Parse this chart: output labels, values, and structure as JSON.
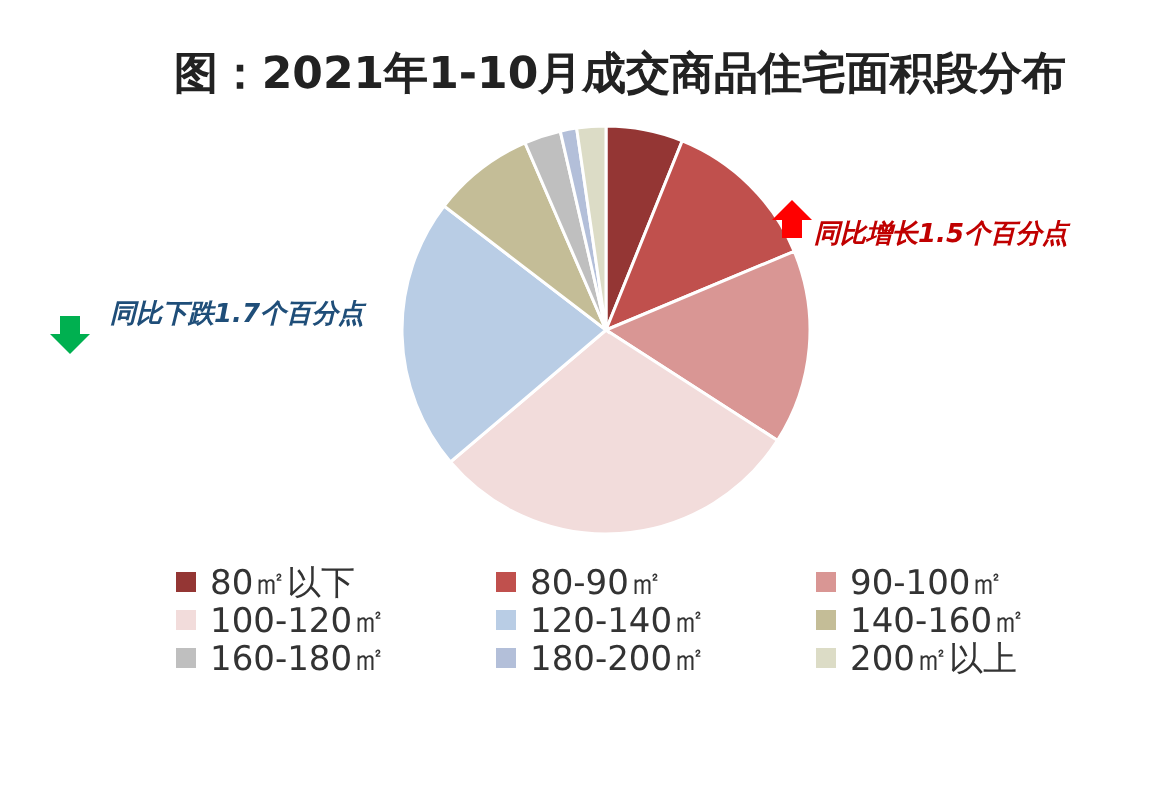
{
  "chart_data": {
    "type": "pie",
    "title": "图：2021年1-10月成交商品住宅面积段分布",
    "categories": [
      "80㎡以下",
      "80-90㎡",
      "90-100㎡",
      "100-120㎡",
      "120-140㎡",
      "140-160㎡",
      "160-180㎡",
      "180-200㎡",
      "200㎡以上"
    ],
    "values": [
      6.1,
      12.6,
      15.4,
      29.7,
      21.6,
      8.1,
      2.9,
      1.3,
      2.3
    ],
    "colors": [
      "#943634",
      "#c0504d",
      "#d99694",
      "#f2dcdb",
      "#b9cde5",
      "#c4bd97",
      "#bfbfbf",
      "#b3bfd9",
      "#dcdcc6"
    ],
    "annotations": [
      "同比增长1.5个百分点",
      "同比下跌1.7个百分点"
    ],
    "legend": "bottom"
  }
}
